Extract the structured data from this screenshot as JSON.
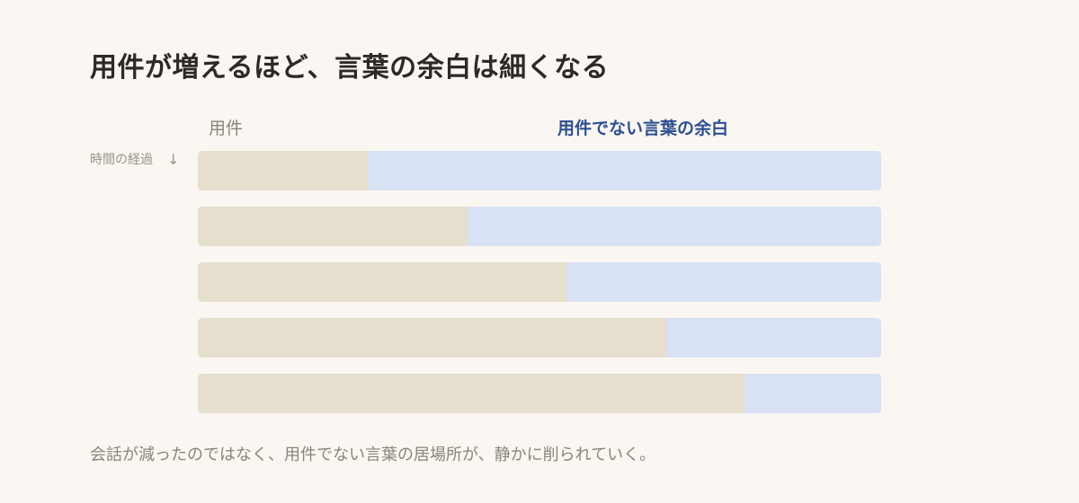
{
  "title": "用件が増えるほど、言葉の余白は細くなる",
  "caption": "会話が減ったのではなく、用件でない言葉の居場所が、静かに削られていく。",
  "time_axis_label": "時間の経過",
  "time_arrow_icon": "down-arrow-icon",
  "colors": {
    "background": "#faf6f1",
    "business": "#e6dfce",
    "non_business": "#d9e1f5",
    "accent_text": "#2d4f8f"
  },
  "chart_data": {
    "type": "bar",
    "orientation": "horizontal",
    "stacked": true,
    "normalized": true,
    "series": [
      {
        "name": "用件",
        "values": [
          0.25,
          0.395,
          0.54,
          0.685,
          0.8
        ]
      },
      {
        "name": "用件でない言葉の余白",
        "values": [
          0.75,
          0.605,
          0.46,
          0.315,
          0.2
        ]
      }
    ],
    "xlim": [
      0,
      1
    ],
    "grid": false,
    "legend": "top"
  }
}
